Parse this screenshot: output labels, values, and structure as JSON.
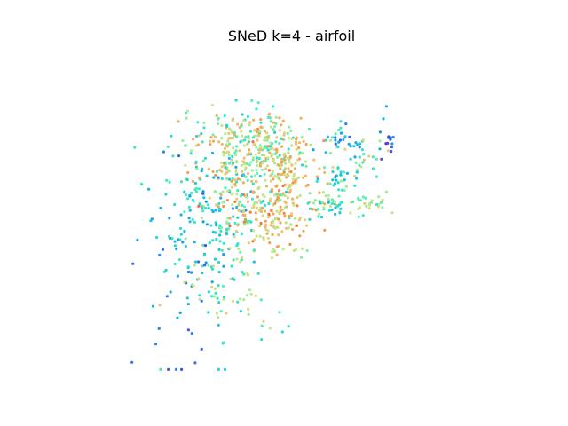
{
  "chart_data": {
    "type": "scatter",
    "title": "SNeD k=4 - airfoil",
    "xlabel": "",
    "ylabel": "",
    "axes_visible": false,
    "grid": false,
    "legend": "none",
    "colormap": "rainbow",
    "color_stops": [
      "#6a2fd6",
      "#2f6ff0",
      "#17b7e6",
      "#2fe8c8",
      "#8df0a0",
      "#c8e887",
      "#f0c070",
      "#f59a4a",
      "#ee4a2a"
    ],
    "marker": "dot",
    "xlim": [
      0,
      100
    ],
    "ylim": [
      0,
      100
    ],
    "clusters": [
      {
        "cx": 28,
        "cy": 48,
        "sx": 7,
        "sy": 11,
        "n": 110,
        "cmin": 0.18,
        "cmax": 0.45
      },
      {
        "cx": 37,
        "cy": 40,
        "sx": 10,
        "sy": 10,
        "n": 240,
        "cmin": 0.35,
        "cmax": 0.95
      },
      {
        "cx": 38,
        "cy": 28,
        "sx": 9,
        "sy": 6,
        "n": 200,
        "cmin": 0.3,
        "cmax": 0.85
      },
      {
        "cx": 44,
        "cy": 50,
        "sx": 5,
        "sy": 7,
        "n": 110,
        "cmin": 0.55,
        "cmax": 0.95
      },
      {
        "cx": 49,
        "cy": 35,
        "sx": 3,
        "sy": 4,
        "n": 55,
        "cmin": 0.55,
        "cmax": 0.9
      },
      {
        "cx": 20,
        "cy": 58,
        "sx": 8,
        "sy": 14,
        "n": 70,
        "cmin": 0.15,
        "cmax": 0.4
      },
      {
        "cx": 31,
        "cy": 74,
        "sx": 8,
        "sy": 10,
        "n": 60,
        "cmin": 0.3,
        "cmax": 0.75
      },
      {
        "cx": 63,
        "cy": 47,
        "sx": 2.5,
        "sy": 1.8,
        "n": 26,
        "cmin": 0.25,
        "cmax": 0.65
      },
      {
        "cx": 66,
        "cy": 38,
        "sx": 2.5,
        "sy": 1.8,
        "n": 24,
        "cmin": 0.2,
        "cmax": 0.55
      },
      {
        "cx": 66,
        "cy": 27,
        "sx": 3,
        "sy": 2.5,
        "n": 30,
        "cmin": 0.1,
        "cmax": 0.6
      },
      {
        "cx": 74,
        "cy": 47,
        "sx": 4,
        "sy": 2,
        "n": 28,
        "cmin": 0.35,
        "cmax": 0.7
      },
      {
        "cx": 72,
        "cy": 33,
        "sx": 3,
        "sy": 2.5,
        "n": 22,
        "cmin": 0.2,
        "cmax": 0.8
      },
      {
        "cx": 78,
        "cy": 26,
        "sx": 2,
        "sy": 4,
        "n": 16,
        "cmin": 0.0,
        "cmax": 0.25
      },
      {
        "cx": 58,
        "cy": 45,
        "sx": 5,
        "sy": 10,
        "n": 40,
        "cmin": 0.25,
        "cmax": 0.9
      },
      {
        "cx": 14,
        "cy": 68,
        "sx": 6,
        "sy": 18,
        "n": 30,
        "cmin": 0.05,
        "cmax": 0.3
      }
    ]
  }
}
